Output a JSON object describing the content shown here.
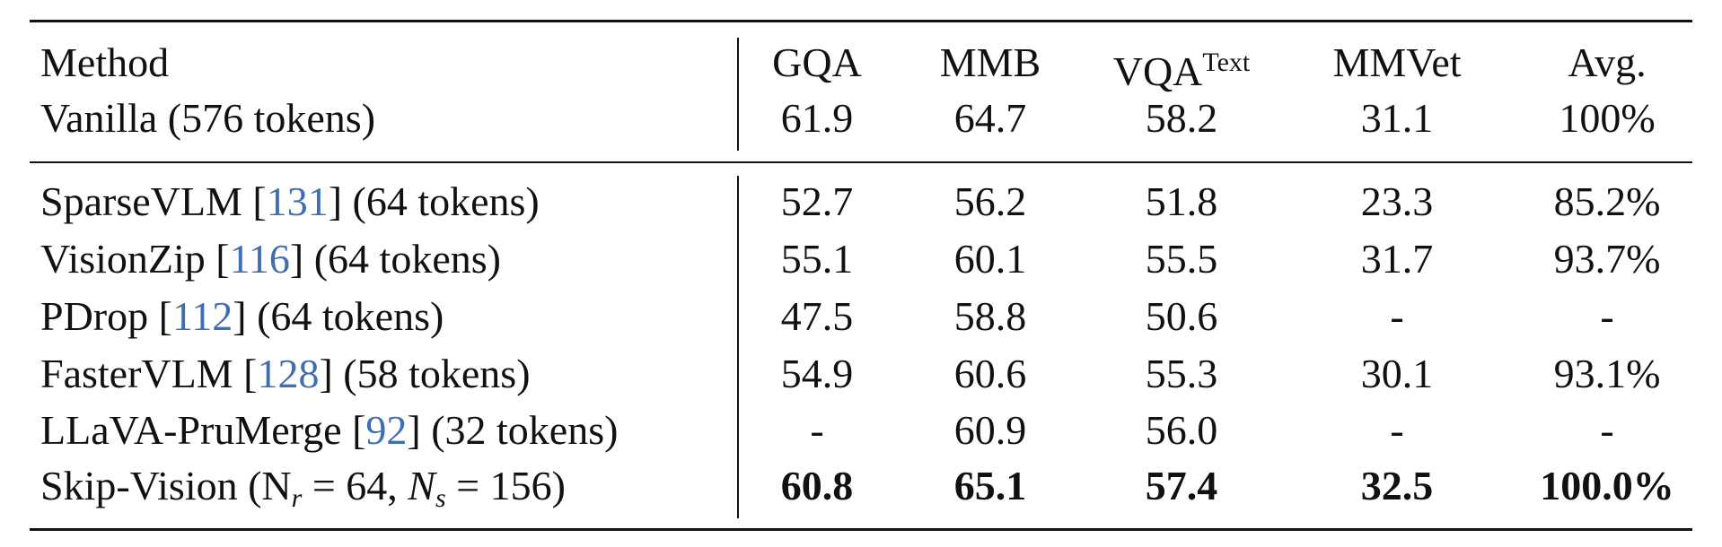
{
  "table": {
    "columns": [
      [
        {
          "text": "Method"
        }
      ],
      [
        {
          "text": "GQA"
        }
      ],
      [
        {
          "text": "MMB"
        }
      ],
      [
        {
          "text": "VQA"
        },
        {
          "text": "Text",
          "style": "sup"
        }
      ],
      [
        {
          "text": "MMVet"
        }
      ],
      [
        {
          "text": "Avg."
        }
      ]
    ],
    "baseline": {
      "method": [
        {
          "text": "Vanilla (576 tokens)"
        }
      ],
      "values": [
        "61.9",
        "64.7",
        "58.2",
        "31.1",
        "100%"
      ]
    },
    "rows": [
      {
        "method": [
          {
            "text": "SparseVLM ["
          },
          {
            "text": "131",
            "style": "cite"
          },
          {
            "text": "] (64 tokens)"
          }
        ],
        "values": [
          "52.7",
          "56.2",
          "51.8",
          "23.3",
          "85.2%"
        ],
        "bold": false
      },
      {
        "method": [
          {
            "text": "VisionZip ["
          },
          {
            "text": "116",
            "style": "cite"
          },
          {
            "text": "] (64 tokens)"
          }
        ],
        "values": [
          "55.1",
          "60.1",
          "55.5",
          "31.7",
          "93.7%"
        ],
        "bold": false
      },
      {
        "method": [
          {
            "text": "PDrop ["
          },
          {
            "text": "112",
            "style": "cite"
          },
          {
            "text": "] (64 tokens)"
          }
        ],
        "values": [
          "47.5",
          "58.8",
          "50.6",
          "-",
          "-"
        ],
        "bold": false
      },
      {
        "method": [
          {
            "text": "FasterVLM ["
          },
          {
            "text": "128",
            "style": "cite"
          },
          {
            "text": "] (58 tokens)"
          }
        ],
        "values": [
          "54.9",
          "60.6",
          "55.3",
          "30.1",
          "93.1%"
        ],
        "bold": false
      },
      {
        "method": [
          {
            "text": "LLaVA-PruMerge ["
          },
          {
            "text": "92",
            "style": "cite"
          },
          {
            "text": "] (32 tokens)"
          }
        ],
        "values": [
          "-",
          "60.9",
          "56.0",
          "-",
          "-"
        ],
        "bold": false
      },
      {
        "method": [
          {
            "text": "Skip-Vision (N"
          },
          {
            "text": "r",
            "style": "sub"
          },
          {
            "text": " = 64, "
          },
          {
            "text": "N",
            "style": "it"
          },
          {
            "text": "s",
            "style": "sub"
          },
          {
            "text": " = 156)"
          }
        ],
        "values": [
          "60.8",
          "65.1",
          "57.4",
          "32.5",
          "100.0%"
        ],
        "bold": true
      }
    ]
  }
}
